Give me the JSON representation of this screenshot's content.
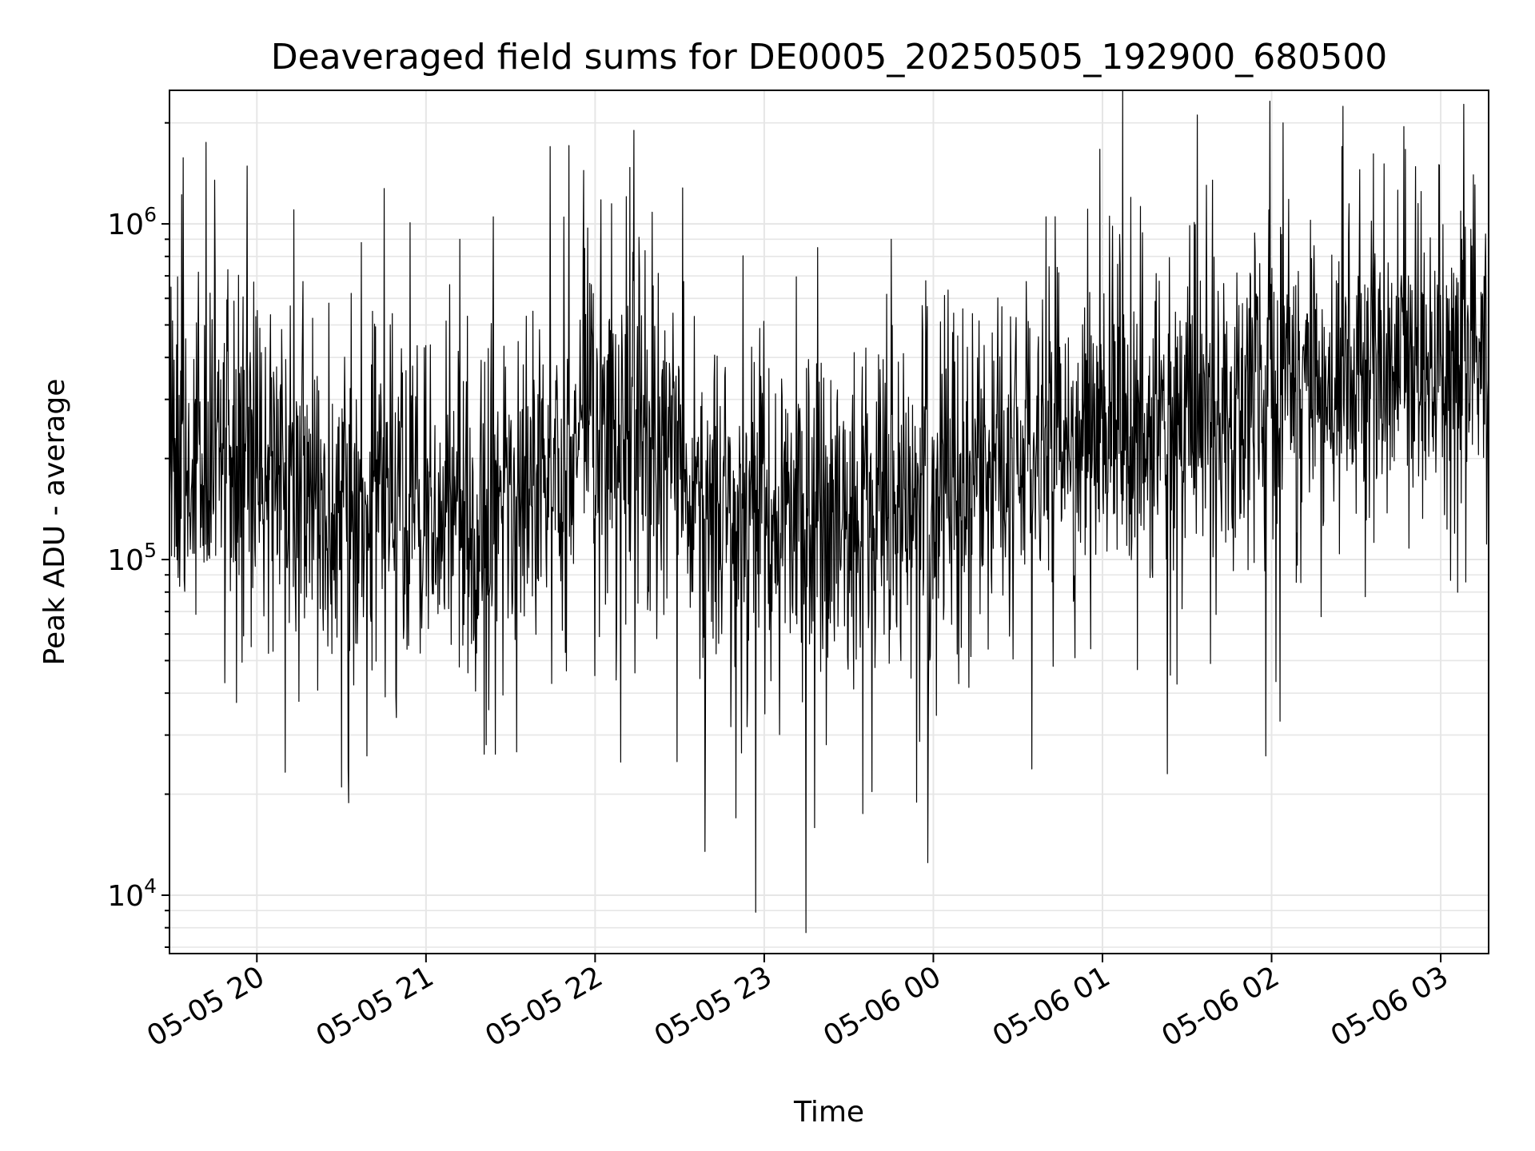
{
  "chart_data": {
    "type": "line",
    "title": "Deaveraged field sums for DE0005_20250505_192900_680500",
    "xlabel": "Time",
    "ylabel": "Peak ADU - average",
    "x_range": [
      "2025-05-05 19:29:00",
      "2025-05-06 03:17:00"
    ],
    "x_ticks": [
      {
        "label": "05-05 20",
        "time": "2025-05-05 20:00"
      },
      {
        "label": "05-05 21",
        "time": "2025-05-05 21:00"
      },
      {
        "label": "05-05 22",
        "time": "2025-05-05 22:00"
      },
      {
        "label": "05-05 23",
        "time": "2025-05-05 23:00"
      },
      {
        "label": "05-06 00",
        "time": "2025-05-06 00:00"
      },
      {
        "label": "05-06 01",
        "time": "2025-05-06 01:00"
      },
      {
        "label": "05-06 02",
        "time": "2025-05-06 02:00"
      },
      {
        "label": "05-06 03",
        "time": "2025-05-06 03:00"
      }
    ],
    "y_scale": "log",
    "ylim": [
      6700,
      2500000
    ],
    "y_ticks": [
      {
        "value": 10000,
        "base": "10",
        "exp": "4"
      },
      {
        "value": 100000,
        "base": "10",
        "exp": "5"
      },
      {
        "value": 1000000,
        "base": "10",
        "exp": "6"
      }
    ],
    "grid": true,
    "line_color": "#000000",
    "grid_color": "#e6e6e6",
    "series": [
      {
        "baseline": [
          {
            "time": "2025-05-05 19:29",
            "value": 200000
          },
          {
            "time": "2025-05-05 19:50",
            "value": 190000
          },
          {
            "time": "2025-05-05 20:30",
            "value": 150000
          },
          {
            "time": "2025-05-05 21:00",
            "value": 140000
          },
          {
            "time": "2025-05-05 21:30",
            "value": 150000
          },
          {
            "time": "2025-05-05 22:00",
            "value": 220000
          },
          {
            "time": "2025-05-05 22:20",
            "value": 230000
          },
          {
            "time": "2025-05-05 22:40",
            "value": 150000
          },
          {
            "time": "2025-05-05 23:00",
            "value": 130000
          },
          {
            "time": "2025-05-05 23:30",
            "value": 140000
          },
          {
            "time": "2025-05-05 23:50",
            "value": 150000
          },
          {
            "time": "2025-05-06 00:30",
            "value": 190000
          },
          {
            "time": "2025-05-06 01:00",
            "value": 230000
          },
          {
            "time": "2025-05-06 01:30",
            "value": 250000
          },
          {
            "time": "2025-05-06 02:00",
            "value": 290000
          },
          {
            "time": "2025-05-06 02:30",
            "value": 330000
          },
          {
            "time": "2025-05-06 03:00",
            "value": 400000
          },
          {
            "time": "2025-05-06 03:17",
            "value": 450000
          }
        ],
        "spikes_high": [
          {
            "time": "2025-05-05 19:42",
            "value": 1750000
          },
          {
            "time": "2025-05-05 19:45",
            "value": 1350000
          },
          {
            "time": "2025-05-05 20:37",
            "value": 880000
          },
          {
            "time": "2025-05-05 21:12",
            "value": 900000
          },
          {
            "time": "2025-05-05 21:44",
            "value": 1700000
          },
          {
            "time": "2025-05-05 22:02",
            "value": 1180000
          },
          {
            "time": "2025-05-05 22:31",
            "value": 1280000
          },
          {
            "time": "2025-05-05 23:19",
            "value": 850000
          },
          {
            "time": "2025-05-05 23:45",
            "value": 900000
          },
          {
            "time": "2025-05-06 00:40",
            "value": 1050000
          },
          {
            "time": "2025-05-06 01:10",
            "value": 1200000
          },
          {
            "time": "2025-05-06 01:39",
            "value": 1350000
          },
          {
            "time": "2025-05-06 02:04",
            "value": 2000000
          },
          {
            "time": "2025-05-06 02:25",
            "value": 1700000
          },
          {
            "time": "2025-05-06 02:47",
            "value": 1950000
          },
          {
            "time": "2025-05-06 02:52",
            "value": 1150000
          }
        ],
        "spikes_low": [
          {
            "time": "2025-05-05 20:30",
            "value": 21000
          },
          {
            "time": "2025-05-05 20:39",
            "value": 26000
          },
          {
            "time": "2025-05-05 22:29",
            "value": 25000
          },
          {
            "time": "2025-05-05 22:39",
            "value": 13500
          },
          {
            "time": "2025-05-05 22:50",
            "value": 17000
          },
          {
            "time": "2025-05-05 22:57",
            "value": 8900
          },
          {
            "time": "2025-05-05 23:35",
            "value": 17500
          },
          {
            "time": "2025-05-05 23:58",
            "value": 12500
          },
          {
            "time": "2025-05-06 01:23",
            "value": 23000
          },
          {
            "time": "2025-05-06 01:58",
            "value": 26000
          },
          {
            "time": "2025-05-06 02:03",
            "value": 33000
          }
        ]
      }
    ]
  }
}
